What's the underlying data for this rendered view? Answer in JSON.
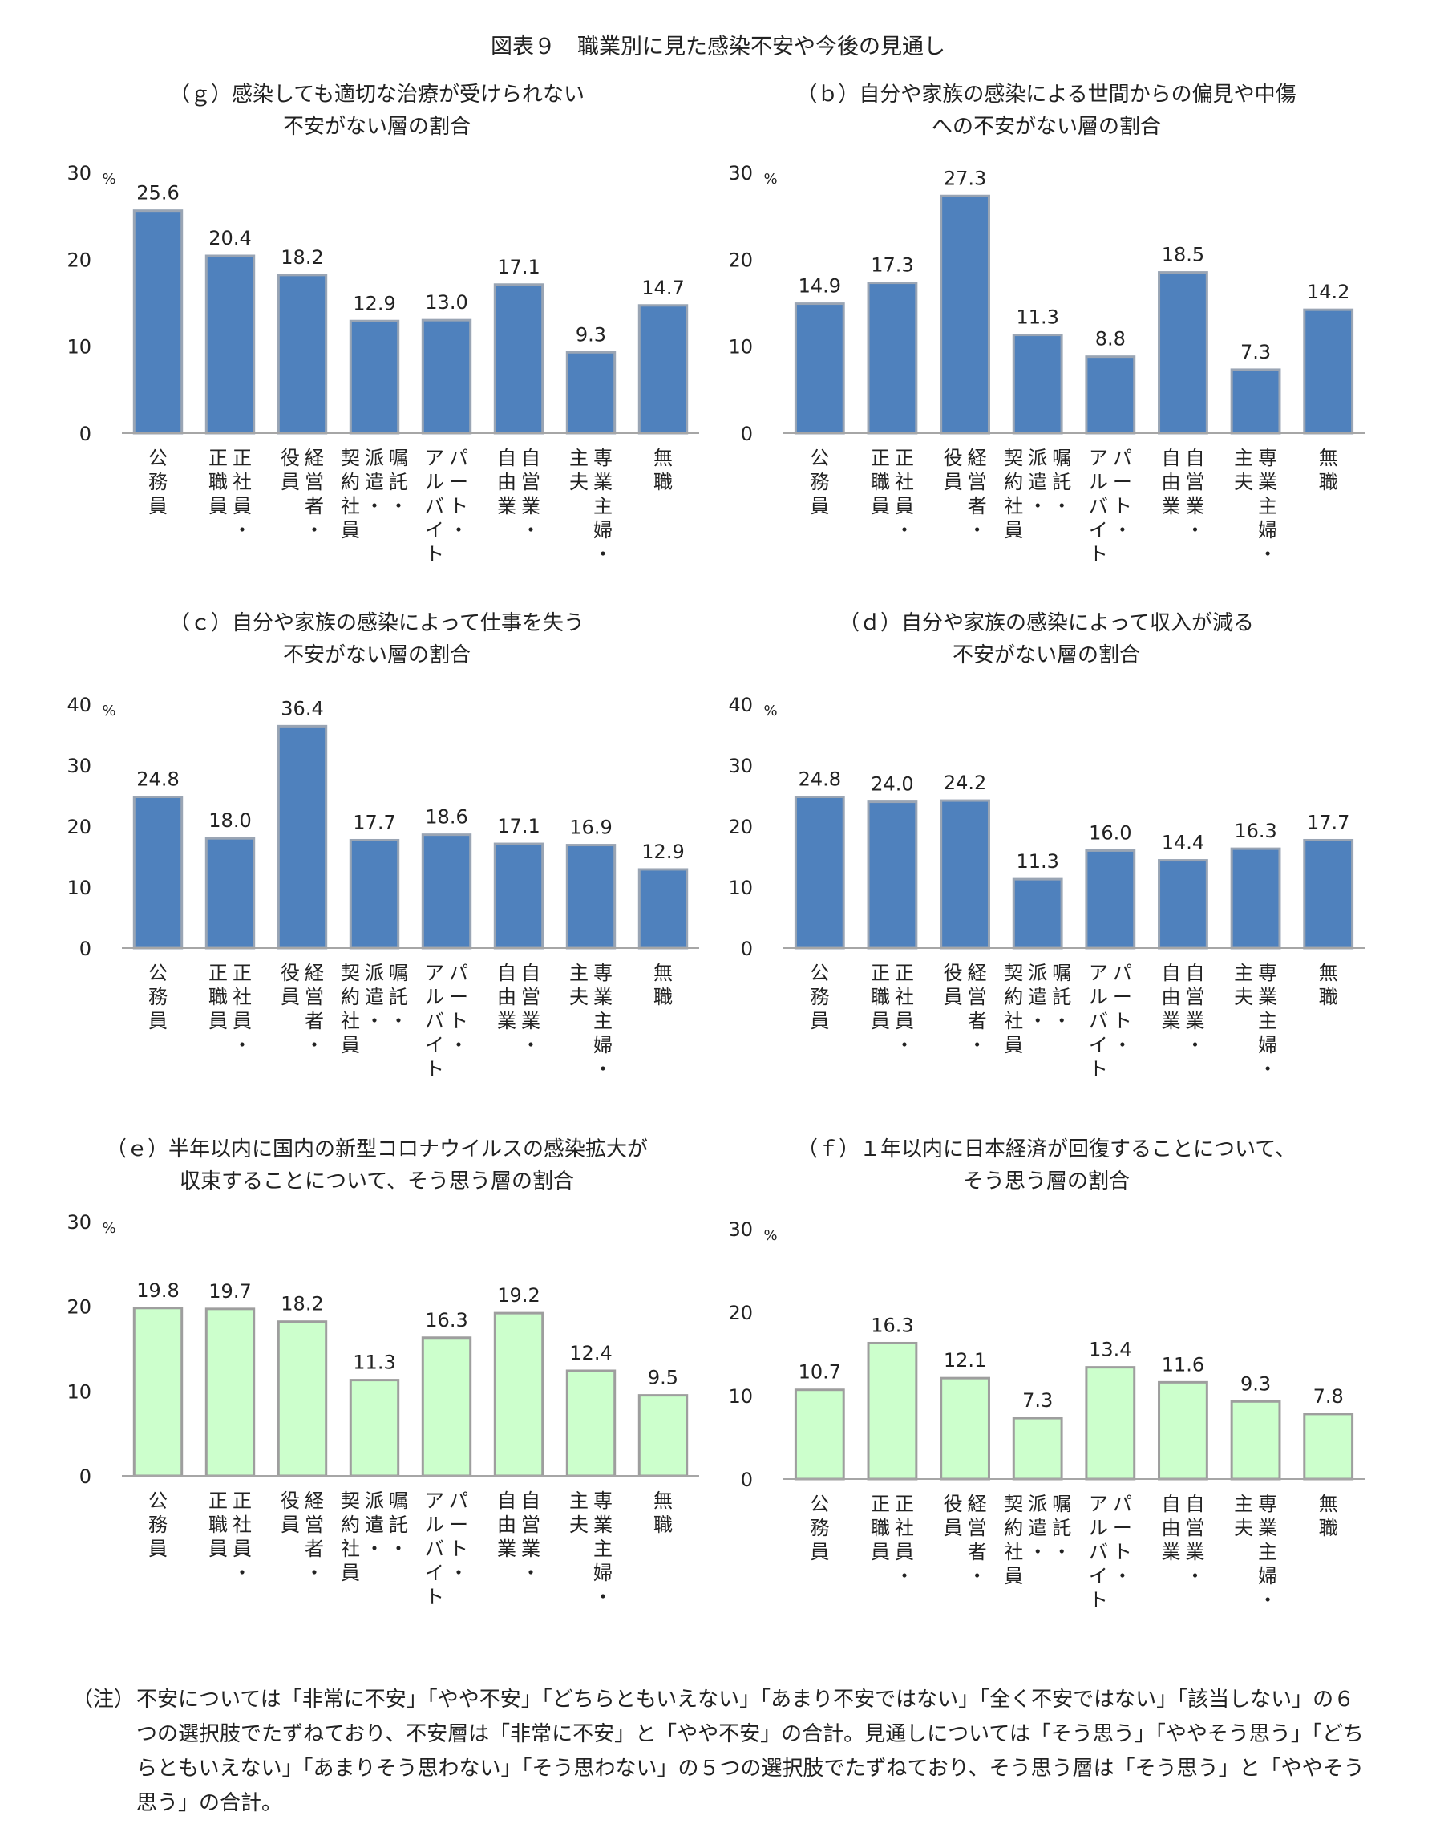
{
  "figure_title": "図表９　職業別に見た感染不安や今後の見通し",
  "unit_label": "%",
  "note": {
    "mark": "（注）",
    "text": "不安については「非常に不安」「やや不安」「どちらともいえない」「あまり不安ではない」「全く不安ではない」「該当しない」の６つの選択肢でたずねており、不安層は「非常に不安」と「やや不安」の合計。見通しについては「そう思う」「ややそう思う」「どちらともいえない」「あまりそう思わない」「そう思わない」の５つの選択肢でたずねており、そう思う層は「そう思う」と「ややそう思う」の合計。"
  },
  "colors": {
    "blue_fill": "#4f81bd",
    "blue_stroke": "#9aa5b4",
    "green_fill": "#ccffcc",
    "green_stroke": "#9e9e9e",
    "axis": "#a6a6a6"
  },
  "chart_data": [
    {
      "type": "bar",
      "title_lines": [
        "（ｇ）感染しても適切な治療が受けられない",
        "不安がない層の割合"
      ],
      "categories": [
        "公務員",
        "正社員・正職員",
        "経営者・役員",
        "嘱託・派遣・契約社員",
        "パート・アルバイト",
        "自営業・自由業",
        "専業主婦・主夫",
        "無職"
      ],
      "values": [
        25.6,
        20.4,
        18.2,
        12.9,
        13.0,
        17.1,
        9.3,
        14.7
      ],
      "ylim": [
        0,
        30
      ],
      "yticks": [
        0,
        10,
        20,
        30
      ],
      "ylabel": "%",
      "color": "blue"
    },
    {
      "type": "bar",
      "title_lines": [
        "（ｂ）自分や家族の感染による世間からの偏見や中傷",
        "への不安がない層の割合"
      ],
      "categories": [
        "公務員",
        "正社員・正職員",
        "経営者・役員",
        "嘱託・派遣・契約社員",
        "パート・アルバイト",
        "自営業・自由業",
        "専業主婦・主夫",
        "無職"
      ],
      "values": [
        14.9,
        17.3,
        27.3,
        11.3,
        8.8,
        18.5,
        7.3,
        14.2
      ],
      "ylim": [
        0,
        30
      ],
      "yticks": [
        0,
        10,
        20,
        30
      ],
      "ylabel": "%",
      "color": "blue"
    },
    {
      "type": "bar",
      "title_lines": [
        "（ｃ）自分や家族の感染によって仕事を失う",
        "不安がない層の割合"
      ],
      "categories": [
        "公務員",
        "正社員・正職員",
        "経営者・役員",
        "嘱託・派遣・契約社員",
        "パート・アルバイト",
        "自営業・自由業",
        "専業主婦・主夫",
        "無職"
      ],
      "values": [
        24.8,
        18.0,
        36.4,
        17.7,
        18.6,
        17.1,
        16.9,
        12.9
      ],
      "ylim": [
        0,
        40
      ],
      "yticks": [
        0,
        10,
        20,
        30,
        40
      ],
      "ylabel": "%",
      "color": "blue"
    },
    {
      "type": "bar",
      "title_lines": [
        "（ｄ）自分や家族の感染によって収入が減る",
        "不安がない層の割合"
      ],
      "categories": [
        "公務員",
        "正社員・正職員",
        "経営者・役員",
        "嘱託・派遣・契約社員",
        "パート・アルバイト",
        "自営業・自由業",
        "専業主婦・主夫",
        "無職"
      ],
      "values": [
        24.8,
        24.0,
        24.2,
        11.3,
        16.0,
        14.4,
        16.3,
        17.7
      ],
      "ylim": [
        0,
        40
      ],
      "yticks": [
        0,
        10,
        20,
        30,
        40
      ],
      "ylabel": "%",
      "color": "blue"
    },
    {
      "type": "bar",
      "title_lines": [
        "（ｅ）半年以内に国内の新型コロナウイルスの感染拡大が",
        "収束することについて、そう思う層の割合"
      ],
      "categories": [
        "公務員",
        "正社員・正職員",
        "経営者・役員",
        "嘱託・派遣・契約社員",
        "パート・アルバイト",
        "自営業・自由業",
        "専業主婦・主夫",
        "無職"
      ],
      "values": [
        19.8,
        19.7,
        18.2,
        11.3,
        16.3,
        19.2,
        12.4,
        9.5
      ],
      "ylim": [
        0,
        30
      ],
      "yticks": [
        0,
        10,
        20,
        30
      ],
      "ylabel": "%",
      "color": "green"
    },
    {
      "type": "bar",
      "title_lines": [
        "（ｆ）１年以内に日本経済が回復することについて、",
        "そう思う層の割合"
      ],
      "categories": [
        "公務員",
        "正社員・正職員",
        "経営者・役員",
        "嘱託・派遣・契約社員",
        "パート・アルバイト",
        "自営業・自由業",
        "専業主婦・主夫",
        "無職"
      ],
      "values": [
        10.7,
        16.3,
        12.1,
        7.3,
        13.4,
        11.6,
        9.3,
        7.8
      ],
      "ylim": [
        0,
        30
      ],
      "yticks": [
        0,
        10,
        20,
        30
      ],
      "ylabel": "%",
      "color": "green"
    }
  ]
}
